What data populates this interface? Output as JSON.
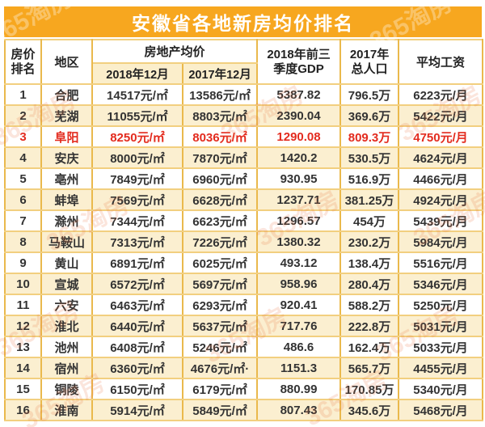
{
  "title": "安徽省各地新房均价排名",
  "watermark": "365淘房",
  "colors": {
    "banner_bg": "#F7A71F",
    "border_gold": "#EAB94C",
    "row_alt_bg": "#FBEFD0",
    "subheader_bg": "#FBEECB",
    "highlight_red": "#E32B1E",
    "text": "#333333"
  },
  "table": {
    "headers": {
      "rank": "房价\n排名",
      "region": "地区",
      "price_group": "房地产均价",
      "price_2018": "2018年12月",
      "price_2017": "2017年12月",
      "gdp": "2018年前三\n季度GDP",
      "population": "2017年\n总人口",
      "salary": "平均工资"
    },
    "rows": [
      {
        "rank": "1",
        "region": "合肥",
        "price_2018": "14517元/㎡",
        "price_2017": "13586元/㎡",
        "gdp": "5387.82",
        "population": "796.5万",
        "salary": "6223元/月",
        "highlight": false
      },
      {
        "rank": "2",
        "region": "芜湖",
        "price_2018": "11055元/㎡",
        "price_2017": "8803元/㎡",
        "gdp": "2390.04",
        "population": "369.6万",
        "salary": "5422元/月",
        "highlight": false
      },
      {
        "rank": "3",
        "region": "阜阳",
        "price_2018": "8250元/㎡",
        "price_2017": "8036元/㎡",
        "gdp": "1290.08",
        "population": "809.3万",
        "salary": "4750元/月",
        "highlight": true
      },
      {
        "rank": "4",
        "region": "安庆",
        "price_2018": "8000元/㎡",
        "price_2017": "7870元/㎡",
        "gdp": "1420.2",
        "population": "530.5万",
        "salary": "4624元/月",
        "highlight": false
      },
      {
        "rank": "5",
        "region": "亳州",
        "price_2018": "7849元/㎡",
        "price_2017": "6960元/㎡",
        "gdp": "930.95",
        "population": "516.9万",
        "salary": "4466元/月",
        "highlight": false
      },
      {
        "rank": "6",
        "region": "蚌埠",
        "price_2018": "7569元/㎡",
        "price_2017": "6628元/㎡",
        "gdp": "1237.71",
        "population": "381.25万",
        "salary": "4924元/月",
        "highlight": false
      },
      {
        "rank": "7",
        "region": "滁州",
        "price_2018": "7344元/㎡",
        "price_2017": "6623元/㎡",
        "gdp": "1296.57",
        "population": "454万",
        "salary": "5439元/月",
        "highlight": false
      },
      {
        "rank": "8",
        "region": "马鞍山",
        "price_2018": "7313元/㎡",
        "price_2017": "7226元/㎡",
        "gdp": "1380.32",
        "population": "230.2万",
        "salary": "5984元/月",
        "highlight": false
      },
      {
        "rank": "9",
        "region": "黄山",
        "price_2018": "6891元/㎡",
        "price_2017": "6025元/㎡",
        "gdp": "493.12",
        "population": "138.4万",
        "salary": "5516元/月",
        "highlight": false
      },
      {
        "rank": "10",
        "region": "宣城",
        "price_2018": "6572元/㎡",
        "price_2017": "5697元/㎡",
        "gdp": "958.96",
        "population": "280.4万",
        "salary": "5346元/月",
        "highlight": false
      },
      {
        "rank": "11",
        "region": "六安",
        "price_2018": "6463元/㎡",
        "price_2017": "6293元/㎡",
        "gdp": "920.41",
        "population": "588.2万",
        "salary": "5250元/月",
        "highlight": false
      },
      {
        "rank": "12",
        "region": "淮北",
        "price_2018": "6440元/㎡",
        "price_2017": "5637元/㎡",
        "gdp": "717.76",
        "population": "222.8万",
        "salary": "5031元/月",
        "highlight": false
      },
      {
        "rank": "13",
        "region": "池州",
        "price_2018": "6408元/㎡",
        "price_2017": "5246元/㎡",
        "gdp": "486.6",
        "population": "162.4万",
        "salary": "5033元/月",
        "highlight": false
      },
      {
        "rank": "14",
        "region": "宿州",
        "price_2018": "6360元/㎡",
        "price_2017": "4676元/㎡·",
        "gdp": "1151.3",
        "population": "565.7万",
        "salary": "4455元/月",
        "highlight": false
      },
      {
        "rank": "15",
        "region": "铜陵",
        "price_2018": "6150元/㎡",
        "price_2017": "6179元/㎡",
        "gdp": "880.99",
        "population": "170.85万",
        "salary": "5340元/月",
        "highlight": false
      },
      {
        "rank": "16",
        "region": "淮南",
        "price_2018": "5914元/㎡",
        "price_2017": "5849元/㎡",
        "gdp": "807.43",
        "population": "345.6万",
        "salary": "5468元/月",
        "highlight": false
      }
    ]
  }
}
